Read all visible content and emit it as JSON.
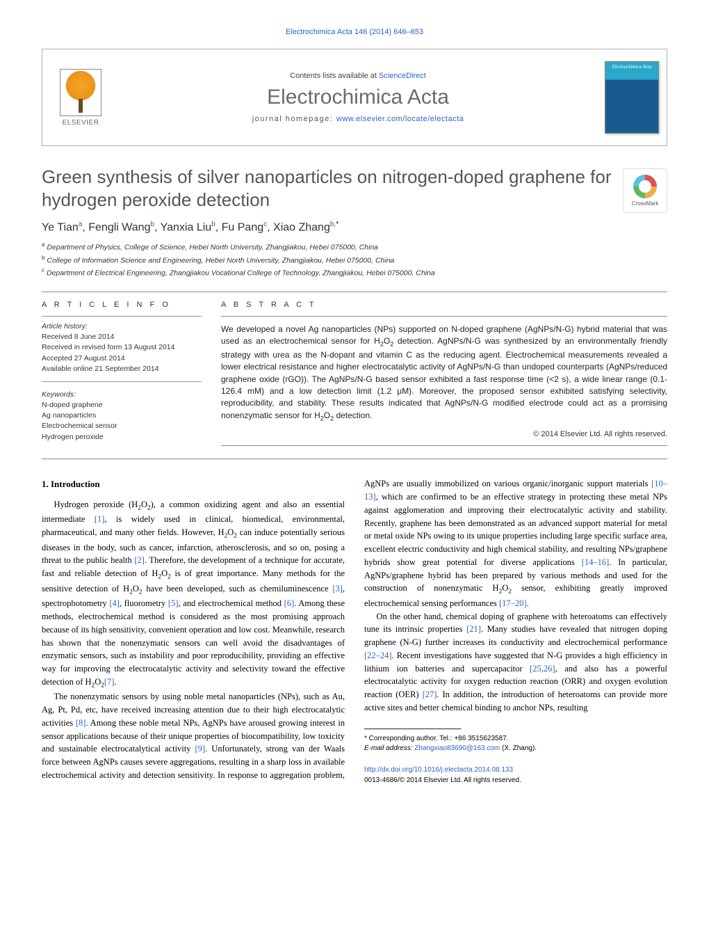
{
  "running_head": "Electrochimica Acta 146 (2014) 646–653",
  "masthead": {
    "contents_prefix": "Contents lists available at ",
    "contents_link_text": "ScienceDirect",
    "journal_name": "Electrochimica Acta",
    "homepage_prefix": "journal homepage: ",
    "homepage_url_text": "www.elsevier.com/locate/electacta",
    "publisher_word": "ELSEVIER",
    "cover_label": "Electrochimica Acta"
  },
  "crossmark_label": "CrossMark",
  "title": "Green synthesis of silver nanoparticles on nitrogen-doped graphene for hydrogen peroxide detection",
  "authors_html": "Ye Tian<sup>a</sup>, Fengli Wang<sup>b</sup>, Yanxia Liu<sup>b</sup>, Fu Pang<sup>c</sup>, Xiao Zhang<sup>b,</sup><sup class=\"star\">*</sup>",
  "affiliations": [
    {
      "tag": "a",
      "text": "Department of Physics, College of Science, Hebei North University, Zhangjiakou, Hebei 075000, China"
    },
    {
      "tag": "b",
      "text": "College of Information Science and Engineering, Hebei North University, Zhangjiakou, Hebei 075000, China"
    },
    {
      "tag": "c",
      "text": "Department of Electrical Engineering, Zhangjiakou Vocational College of Technology, Zhangjiakou, Hebei 075000, China"
    }
  ],
  "article_info_head": "A R T I C L E  I N F O",
  "abstract_head": "A B S T R A C T",
  "history": {
    "label": "Article history:",
    "lines": [
      "Received 8 June 2014",
      "Received in revised form 13 August 2014",
      "Accepted 27 August 2014",
      "Available online 21 September 2014"
    ]
  },
  "keywords": {
    "label": "Keywords:",
    "items": [
      "N-doped graphene",
      "Ag nanoparticles",
      "Electrochemical sensor",
      "Hydrogen peroxide"
    ]
  },
  "abstract_html": "We developed a novel Ag nanoparticles (NPs) supported on N-doped graphene (AgNPs/N-G) hybrid material that was used as an electrochemical sensor for H<sub>2</sub>O<sub>2</sub> detection. AgNPs/N-G was synthesized by an environmentally friendly strategy with urea as the N-dopant and vitamin C as the reducing agent. Electrochemical measurements revealed a lower electrical resistance and higher electrocatalytic activity of AgNPs/N-G than undoped counterparts (AgNPs/reduced graphene oxide (rGO)). The AgNPs/N-G based sensor exhibited a fast response time (&lt;2 s), a wide linear range (0.1-126.4 mM) and a low detection limit (1.2 μM). Moreover, the proposed sensor exhibited satisfying selectivity, reproducibility, and stability. These results indicated that AgNPs/N-G modified electrode could act as a promising nonenzymatic sensor for H<sub>2</sub>O<sub>2</sub> detection.",
  "copyright": "© 2014 Elsevier Ltd. All rights reserved.",
  "section_head": "1. Introduction",
  "paragraphs": [
    "Hydrogen peroxide (H<sub>2</sub>O<sub>2</sub>), a common oxidizing agent and also an essential intermediate <span class=\"cite\">[1]</span>, is widely used in clinical, biomedical, environmental, pharmaceutical, and many other fields. However, H<sub>2</sub>O<sub>2</sub> can induce potentially serious diseases in the body, such as cancer, infarction, atherosclerosis, and so on, posing a threat to the public health <span class=\"cite\">[2]</span>. Therefore, the development of a technique for accurate, fast and reliable detection of H<sub>2</sub>O<sub>2</sub> is of great importance. Many methods for the sensitive detection of H<sub>2</sub>O<sub>2</sub> have been developed, such as chemiluminescence <span class=\"cite\">[3]</span>, spectrophotometry <span class=\"cite\">[4]</span>, fluorometry <span class=\"cite\">[5]</span>, and electrochemical method <span class=\"cite\">[6]</span>. Among these methods, electrochemical method is considered as the most promising approach because of its high sensitivity, convenient operation and low cost. Meanwhile, research has shown that the nonenzymatic sensors can well avoid the disadvantages of enzymatic sensors, such as instability and poor reproducibility, providing an effective way for improving the electrocatalytic activity and selectivity toward the effective detection of H<sub>2</sub>O<sub>2</sub><span class=\"cite\">[7]</span>.",
    "The nonenzymatic sensors by using noble metal nanoparticles (NPs), such as Au, Ag, Pt, Pd, etc, have received increasing attention due to their high electrocatalytic activities <span class=\"cite\">[8]</span>. Among these noble metal NPs, AgNPs have aroused growing interest in sensor applications because of their unique properties of biocompatibility, low toxicity and sustainable electrocatalytical activity <span class=\"cite\">[9]</span>. Unfortunately, strong van der Waals force between AgNPs causes severe aggregations, resulting in a sharp loss in available electrochemical activity and detection sensitivity. In response to aggregation problem, AgNPs are usually immobilized on various organic/inorganic support materials <span class=\"cite\">[10–13]</span>, which are confirmed to be an effective strategy in protecting these metal NPs against agglomeration and improving their electrocatalytic activity and stability. Recently, graphene has been demonstrated as an advanced support material for metal or metal oxide NPs owing to its unique properties including large specific surface area, excellent electric conductivity and high chemical stability, and resulting NPs/graphene hybrids show great potential for diverse applications <span class=\"cite\">[14–16]</span>. In particular, AgNPs/graphene hybrid has been prepared by various methods and used for the construction of nonenzymatic H<sub>2</sub>O<sub>2</sub> sensor, exhibiting greatly improved electrochemical sensing performances <span class=\"cite\">[17–20]</span>.",
    "On the other hand, chemical doping of graphene with heteroatoms can effectively tune its intrinsic properties <span class=\"cite\">[21]</span>. Many studies have revealed that nitrogen doping graphene (N-G) further increases its conductivity and electrochemical performance <span class=\"cite\">[22–24]</span>. Recent investigations have suggested that N-G provides a high efficiency in lithium ion batteries and supercapacitor <span class=\"cite\">[25,26]</span>, and also has a powerful electrocatalytic activity for oxygen reduction reaction (ORR) and oxygen evolution reaction (OER) <span class=\"cite\">[27]</span>. In addition, the introduction of heteroatoms can provide more active sites and better chemical binding to anchor NPs, resulting"
  ],
  "footnote": {
    "corr_line": "* Corresponding author. Tel.: +86 3515623587.",
    "email_label": "E-mail address:",
    "email": "Zhangxiao83690@163.com",
    "email_suffix": "(X. Zhang)."
  },
  "bottom": {
    "doi": "http://dx.doi.org/10.1016/j.electacta.2014.08.133",
    "issn_line": "0013-4686/© 2014 Elsevier Ltd. All rights reserved."
  },
  "colors": {
    "link": "#2962c7",
    "title_gray": "#555555",
    "journal_gray": "#6b6b6b"
  }
}
